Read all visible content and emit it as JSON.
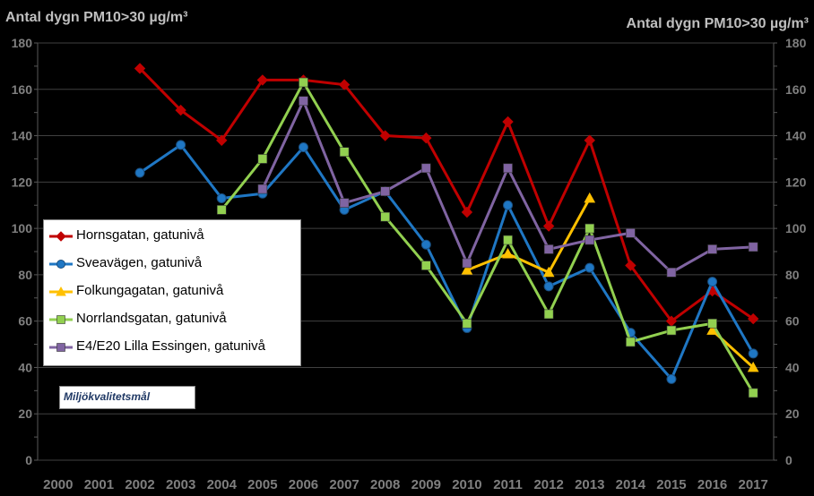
{
  "chart_data": {
    "type": "line",
    "ylabel_left": "Antal dygn PM10>30 µg/m³",
    "ylabel_right": "Antal dygn PM10>30 µg/m³",
    "ylim": [
      0,
      180
    ],
    "yticks": [
      "0",
      "20",
      "40",
      "60",
      "80",
      "100",
      "120",
      "140",
      "160",
      "180"
    ],
    "categories": [
      "2000",
      "2001",
      "2002",
      "2003",
      "2004",
      "2005",
      "2006",
      "2007",
      "2008",
      "2009",
      "2010",
      "2011",
      "2012",
      "2013",
      "2014",
      "2015",
      "2016",
      "2017"
    ],
    "series": [
      {
        "name": "Hornsgatan, gatunivå",
        "color": "#c00000",
        "marker": "diamond",
        "values": [
          null,
          null,
          169,
          151,
          138,
          164,
          164,
          162,
          140,
          139,
          107,
          146,
          101,
          138,
          84,
          60,
          73,
          61
        ]
      },
      {
        "name": "Sveavägen, gatunivå",
        "color": "#1f77c4",
        "marker": "circle",
        "values": [
          null,
          null,
          124,
          136,
          113,
          115,
          135,
          108,
          116,
          93,
          57,
          110,
          75,
          83,
          55,
          35,
          77,
          46
        ]
      },
      {
        "name": "Folkungagatan, gatunivå",
        "color": "#ffc000",
        "marker": "triangle",
        "values": [
          null,
          null,
          null,
          null,
          null,
          null,
          null,
          null,
          null,
          null,
          82,
          89,
          81,
          113,
          null,
          null,
          56,
          40
        ]
      },
      {
        "name": "Norrlandsgatan, gatunivå",
        "color": "#92d050",
        "marker": "square",
        "values": [
          null,
          null,
          null,
          null,
          108,
          130,
          163,
          133,
          105,
          84,
          59,
          95,
          63,
          100,
          51,
          56,
          59,
          29
        ]
      },
      {
        "name": "E4/E20 Lilla Essingen, gatunivå",
        "color": "#8064a2",
        "marker": "square",
        "values": [
          null,
          null,
          null,
          null,
          null,
          117,
          155,
          111,
          116,
          126,
          85,
          126,
          91,
          95,
          98,
          81,
          91,
          92
        ]
      }
    ],
    "target_label": "Miljökvalitetsmål"
  },
  "colors": {
    "background": "#000000",
    "grid": "#404040",
    "axis_text": "#7f7f7f",
    "title_text": "#bfbfbf"
  }
}
